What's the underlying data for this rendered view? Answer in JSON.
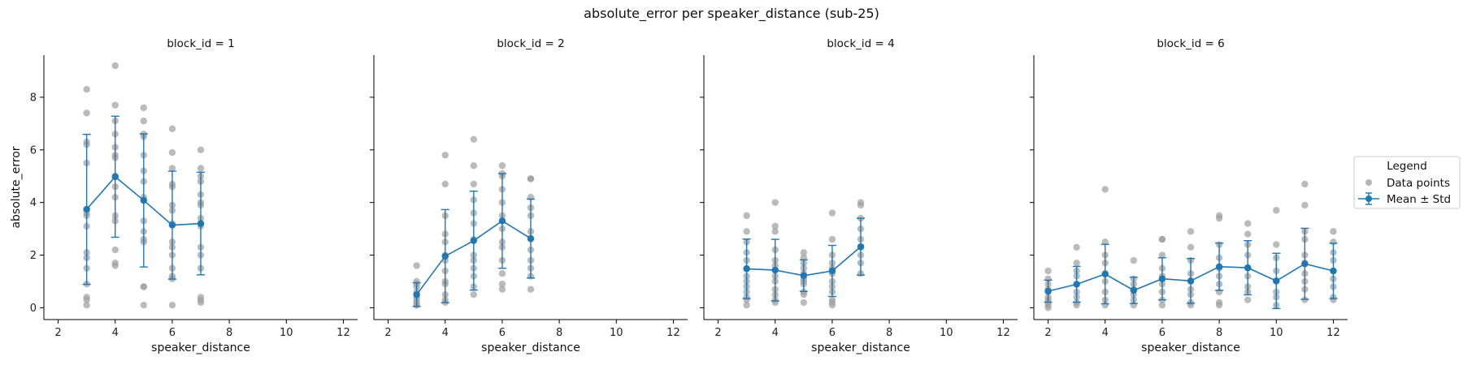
{
  "figure": {
    "title": "absolute_error per speaker_distance (sub-25)",
    "xlabel": "speaker_distance",
    "ylabel": "absolute_error"
  },
  "legend": {
    "title": "Legend",
    "items": [
      {
        "label": "Data points",
        "marker": "gray-dot"
      },
      {
        "label": "Mean ± Std",
        "marker": "blue-errorbar-line"
      }
    ]
  },
  "colors": {
    "points": "#9e9e9e",
    "mean": "#1f77b4",
    "axis": "#000000"
  },
  "chart_data": [
    {
      "type": "scatter",
      "title": "block_id = 1",
      "xlabel": "speaker_distance",
      "ylabel": "absolute_error",
      "xlim": [
        1.5,
        12.5
      ],
      "ylim": [
        -0.45,
        9.6
      ],
      "xticks": [
        2,
        4,
        6,
        8,
        10,
        12
      ],
      "yticks": [
        0,
        2,
        4,
        6,
        8
      ],
      "points": [
        {
          "x": 3,
          "y": [
            8.3,
            7.4,
            6.3,
            6.2,
            5.5,
            3.6,
            3.5,
            3.1,
            2.1,
            1.9,
            1.5,
            0.9,
            0.4,
            0.3,
            0.1
          ]
        },
        {
          "x": 4,
          "y": [
            9.2,
            7.7,
            7.1,
            6.6,
            6.1,
            5.8,
            5.7,
            5.0,
            4.6,
            4.2,
            3.5,
            3.3,
            2.2,
            1.7,
            1.6
          ]
        },
        {
          "x": 5,
          "y": [
            7.6,
            7.1,
            6.6,
            6.5,
            5.8,
            5.2,
            4.8,
            4.2,
            3.3,
            2.9,
            2.6,
            2.5,
            0.8,
            0.8,
            0.1
          ]
        },
        {
          "x": 6,
          "y": [
            6.8,
            5.9,
            5.3,
            4.7,
            4.6,
            3.9,
            3.7,
            3.2,
            2.5,
            2.3,
            2.0,
            1.5,
            1.2,
            1.1,
            0.1
          ]
        },
        {
          "x": 7,
          "y": [
            6.0,
            5.3,
            5.0,
            4.8,
            4.3,
            4.0,
            3.9,
            3.4,
            3.1,
            2.3,
            2.0,
            1.5,
            0.4,
            0.3,
            0.2
          ]
        }
      ],
      "mean": [
        {
          "x": 3,
          "y": 3.74,
          "std": 2.85
        },
        {
          "x": 4,
          "y": 4.98,
          "std": 2.3
        },
        {
          "x": 5,
          "y": 4.08,
          "std": 2.53
        },
        {
          "x": 6,
          "y": 3.14,
          "std": 2.05
        },
        {
          "x": 7,
          "y": 3.2,
          "std": 1.95
        }
      ]
    },
    {
      "type": "scatter",
      "title": "block_id = 2",
      "xlabel": "speaker_distance",
      "ylabel": "",
      "xlim": [
        1.5,
        12.5
      ],
      "ylim": [
        -0.45,
        9.6
      ],
      "xticks": [
        2,
        4,
        6,
        8,
        10,
        12
      ],
      "yticks": [
        0,
        2,
        4,
        6,
        8
      ],
      "points": [
        {
          "x": 3,
          "y": [
            1.6,
            1.0,
            0.9,
            0.8,
            0.6,
            0.5,
            0.4,
            0.3,
            0.2,
            0.1,
            0.1
          ]
        },
        {
          "x": 4,
          "y": [
            5.8,
            4.7,
            3.5,
            2.8,
            2.5,
            2.0,
            1.8,
            1.4,
            1.0,
            0.9,
            0.5,
            0.3,
            0.2
          ]
        },
        {
          "x": 5,
          "y": [
            6.4,
            5.4,
            4.7,
            4.1,
            3.6,
            3.2,
            2.6,
            2.0,
            1.8,
            1.5,
            1.2,
            0.8,
            0.5
          ]
        },
        {
          "x": 6,
          "y": [
            5.4,
            5.1,
            5.0,
            4.5,
            4.0,
            3.5,
            3.0,
            2.5,
            2.3,
            1.8,
            1.3,
            0.9,
            0.7
          ]
        },
        {
          "x": 7,
          "y": [
            4.9,
            4.9,
            4.2,
            3.8,
            3.5,
            2.9,
            2.6,
            2.2,
            1.8,
            1.5,
            1.2,
            0.7
          ]
        }
      ],
      "mean": [
        {
          "x": 3,
          "y": 0.5,
          "std": 0.45
        },
        {
          "x": 4,
          "y": 1.96,
          "std": 1.77
        },
        {
          "x": 5,
          "y": 2.55,
          "std": 1.88
        },
        {
          "x": 6,
          "y": 3.3,
          "std": 1.8
        },
        {
          "x": 7,
          "y": 2.63,
          "std": 1.5
        }
      ]
    },
    {
      "type": "scatter",
      "title": "block_id = 4",
      "xlabel": "speaker_distance",
      "ylabel": "",
      "xlim": [
        1.5,
        12.5
      ],
      "ylim": [
        -0.45,
        9.6
      ],
      "xticks": [
        2,
        4,
        6,
        8,
        10,
        12
      ],
      "yticks": [
        0,
        2,
        4,
        6,
        8
      ],
      "points": [
        {
          "x": 3,
          "y": [
            3.5,
            2.9,
            2.5,
            2.1,
            1.8,
            1.5,
            1.2,
            1.0,
            0.8,
            0.6,
            0.4,
            0.3,
            0.1
          ]
        },
        {
          "x": 4,
          "y": [
            4.0,
            3.1,
            2.9,
            2.2,
            1.8,
            1.6,
            1.2,
            1.0,
            0.7,
            0.5,
            0.3,
            0.2
          ]
        },
        {
          "x": 5,
          "y": [
            2.1,
            1.9,
            1.7,
            1.5,
            1.3,
            1.1,
            1.0,
            0.9,
            0.6,
            0.5,
            0.2
          ]
        },
        {
          "x": 6,
          "y": [
            3.6,
            2.6,
            2.0,
            1.7,
            1.5,
            1.3,
            1.0,
            0.8,
            0.6,
            0.3,
            0.2,
            0.1
          ]
        },
        {
          "x": 7,
          "y": [
            4.0,
            3.9,
            3.4,
            3.0,
            2.6,
            2.3,
            2.0,
            1.7,
            1.3
          ]
        }
      ],
      "mean": [
        {
          "x": 3,
          "y": 1.48,
          "std": 1.13
        },
        {
          "x": 4,
          "y": 1.43,
          "std": 1.17
        },
        {
          "x": 5,
          "y": 1.22,
          "std": 0.6
        },
        {
          "x": 6,
          "y": 1.4,
          "std": 0.97
        },
        {
          "x": 7,
          "y": 2.32,
          "std": 1.08
        }
      ]
    },
    {
      "type": "scatter",
      "title": "block_id = 6",
      "xlabel": "speaker_distance",
      "ylabel": "",
      "xlim": [
        1.5,
        12.5
      ],
      "ylim": [
        -0.45,
        9.6
      ],
      "xticks": [
        2,
        4,
        6,
        8,
        10,
        12
      ],
      "yticks": [
        0,
        2,
        4,
        6,
        8
      ],
      "points": [
        {
          "x": 2,
          "y": [
            1.4,
            1.1,
            0.9,
            0.7,
            0.6,
            0.4,
            0.3,
            0.2,
            0.1,
            0.0
          ]
        },
        {
          "x": 3,
          "y": [
            2.3,
            1.7,
            1.4,
            1.2,
            0.9,
            0.6,
            0.4,
            0.2,
            0.1
          ]
        },
        {
          "x": 4,
          "y": [
            4.5,
            2.5,
            2.0,
            1.7,
            1.3,
            1.0,
            0.6,
            0.3,
            0.1
          ]
        },
        {
          "x": 5,
          "y": [
            1.8,
            1.1,
            0.9,
            0.7,
            0.5,
            0.3,
            0.1
          ]
        },
        {
          "x": 6,
          "y": [
            2.6,
            2.6,
            2.0,
            1.5,
            1.2,
            0.9,
            0.6,
            0.3,
            0.1
          ]
        },
        {
          "x": 7,
          "y": [
            2.9,
            2.3,
            1.8,
            1.3,
            1.0,
            0.7,
            0.5,
            0.2,
            0.1
          ]
        },
        {
          "x": 8,
          "y": [
            3.5,
            3.4,
            2.4,
            1.9,
            1.5,
            1.2,
            0.9,
            0.6,
            0.2,
            0.1
          ]
        },
        {
          "x": 9,
          "y": [
            3.2,
            2.8,
            2.4,
            2.0,
            1.5,
            1.2,
            0.8,
            0.6,
            0.3
          ]
        },
        {
          "x": 10,
          "y": [
            3.7,
            2.4,
            1.9,
            1.4,
            1.0,
            0.6,
            0.4,
            0.1
          ]
        },
        {
          "x": 11,
          "y": [
            4.7,
            3.9,
            2.9,
            2.6,
            2.0,
            1.7,
            1.3,
            1.0,
            0.7,
            0.3
          ]
        },
        {
          "x": 12,
          "y": [
            2.9,
            2.5,
            2.1,
            1.8,
            1.4,
            1.1,
            0.8,
            0.4,
            0.3
          ]
        }
      ],
      "mean": [
        {
          "x": 2,
          "y": 0.63,
          "std": 0.42
        },
        {
          "x": 3,
          "y": 0.89,
          "std": 0.68
        },
        {
          "x": 4,
          "y": 1.28,
          "std": 1.13
        },
        {
          "x": 5,
          "y": 0.66,
          "std": 0.5
        },
        {
          "x": 6,
          "y": 1.1,
          "std": 0.8
        },
        {
          "x": 7,
          "y": 1.02,
          "std": 0.85
        },
        {
          "x": 8,
          "y": 1.56,
          "std": 0.9
        },
        {
          "x": 9,
          "y": 1.52,
          "std": 1.03
        },
        {
          "x": 10,
          "y": 1.02,
          "std": 1.05
        },
        {
          "x": 11,
          "y": 1.67,
          "std": 1.35
        },
        {
          "x": 12,
          "y": 1.4,
          "std": 1.05
        }
      ]
    }
  ]
}
